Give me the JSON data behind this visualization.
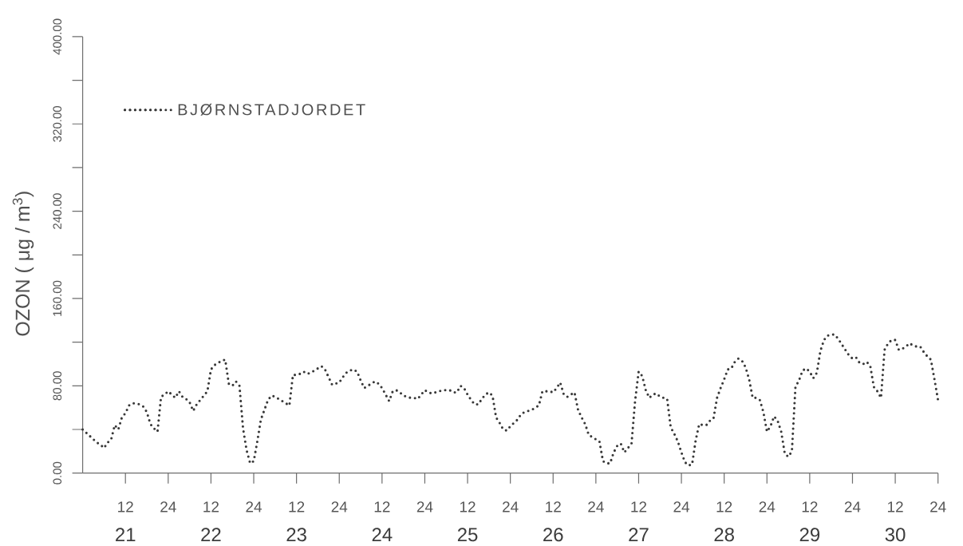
{
  "chart_data": {
    "type": "line",
    "ylabel": "OZON ( μg / m$^{3}$)",
    "legend": "top left",
    "line_style": "dotted",
    "categories": [
      null,
      null,
      null,
      null,
      null,
      null,
      null,
      null,
      null,
      null,
      null,
      null,
      "12",
      null,
      null,
      null,
      null,
      null,
      null,
      null,
      null,
      null,
      null,
      null,
      "24",
      null,
      null,
      null,
      null,
      null,
      null,
      null,
      null,
      null,
      null,
      null,
      "12",
      null,
      null,
      null,
      null,
      null,
      null,
      null,
      null,
      null,
      null,
      null,
      "24",
      null,
      null,
      null,
      null,
      null,
      null,
      null,
      null,
      null,
      null,
      null,
      "12",
      null,
      null,
      null,
      null,
      null,
      null,
      null,
      null,
      null,
      null,
      null,
      "24",
      null,
      null,
      null,
      null,
      null,
      null,
      null,
      null,
      null,
      null,
      null,
      "12",
      null,
      null,
      null,
      null,
      null,
      null,
      null,
      null,
      null,
      null,
      null,
      "24",
      null,
      null,
      null,
      null,
      null,
      null,
      null,
      null,
      null,
      null,
      null,
      "12",
      null,
      null,
      null,
      null,
      null,
      null,
      null,
      null,
      null,
      null,
      null,
      "24",
      null,
      null,
      null,
      null,
      null,
      null,
      null,
      null,
      null,
      null,
      null,
      "12",
      null,
      null,
      null,
      null,
      null,
      null,
      null,
      null,
      null,
      null,
      null,
      "24",
      null,
      null,
      null,
      null,
      null,
      null,
      null,
      null,
      null,
      null,
      null,
      "12",
      null,
      null,
      null,
      null,
      null,
      null,
      null,
      null,
      null,
      null,
      null,
      "24",
      null,
      null,
      null,
      null,
      null,
      null,
      null,
      null,
      null,
      null,
      null,
      "12",
      null,
      null,
      null,
      null,
      null,
      null,
      null,
      null,
      null,
      null,
      null,
      "24",
      null,
      null,
      null,
      null,
      null,
      null,
      null,
      null,
      null,
      null,
      null,
      "12",
      null,
      null,
      null,
      null,
      null,
      null,
      null,
      null,
      null,
      null,
      null,
      "24",
      null,
      null,
      null,
      null,
      null,
      null,
      null,
      null,
      null,
      null,
      null,
      "12",
      null,
      null,
      null,
      null,
      null,
      null,
      null,
      null,
      null,
      null,
      null,
      "24"
    ],
    "x2lim": [
      21,
      31
    ],
    "x2ticks": [
      {
        "value": 21.5,
        "label": "21"
      },
      {
        "value": 22.5,
        "label": "22"
      },
      {
        "value": 23.5,
        "label": "23"
      },
      {
        "value": 24.5,
        "label": "24"
      },
      {
        "value": 25.5,
        "label": "25"
      },
      {
        "value": 26.5,
        "label": "26"
      },
      {
        "value": 27.5,
        "label": "27"
      },
      {
        "value": 28.5,
        "label": "28"
      },
      {
        "value": 29.5,
        "label": "29"
      },
      {
        "value": 30.5,
        "label": "30"
      }
    ],
    "ylim": [
      0,
      400
    ],
    "yticks": [
      {
        "value": 0,
        "label": "0.00"
      },
      {
        "value": 40,
        "label": null
      },
      {
        "value": 80,
        "label": "80.00"
      },
      {
        "value": 120,
        "label": null
      },
      {
        "value": 160,
        "label": "160.00"
      },
      {
        "value": 200,
        "label": null
      },
      {
        "value": 240,
        "label": "240.00"
      },
      {
        "value": 280,
        "label": null
      },
      {
        "value": 320,
        "label": "320.00"
      },
      {
        "value": 360,
        "label": null
      },
      {
        "value": 400,
        "label": "400.00"
      }
    ],
    "series": [
      {
        "name": "BJØRNSTADJORDET",
        "color": "#383838",
        "values": [
          40,
          37,
          34,
          31,
          28,
          26,
          23,
          28,
          31,
          44,
          40,
          51,
          55,
          62,
          64,
          64,
          63,
          61,
          56,
          45,
          41,
          38,
          70,
          72,
          75,
          72,
          69,
          75,
          70,
          68,
          65,
          57,
          63,
          67,
          71,
          75,
          95,
          99,
          101,
          103,
          104,
          82,
          80,
          84,
          80,
          41,
          21,
          9,
          11,
          29,
          49,
          58,
          67,
          71,
          70,
          68,
          66,
          64,
          62,
          90,
          90,
          91,
          93,
          91,
          92,
          94,
          96,
          98,
          95,
          88,
          81,
          82,
          83,
          88,
          92,
          94,
          95,
          93,
          85,
          78,
          80,
          82,
          84,
          82,
          78,
          72,
          66,
          75,
          76,
          74,
          71,
          70,
          69,
          69,
          68,
          72,
          76,
          74,
          73,
          74,
          75,
          76,
          76,
          76,
          74,
          74,
          80,
          78,
          72,
          67,
          63,
          63,
          68,
          72,
          74,
          71,
          51,
          46,
          40,
          39,
          43,
          46,
          49,
          54,
          56,
          57,
          58,
          60,
          62,
          75,
          75,
          75,
          74,
          78,
          83,
          72,
          70,
          72,
          74,
          58,
          51,
          45,
          35,
          33,
          31,
          29,
          11,
          9,
          9,
          19,
          25,
          27,
          19,
          23,
          27,
          66,
          93,
          89,
          76,
          69,
          72,
          73,
          70,
          69,
          68,
          42,
          36,
          29,
          19,
          10,
          7,
          8,
          30,
          45,
          44,
          44,
          48,
          50,
          69,
          78,
          86,
          95,
          96,
          102,
          105,
          103,
          97,
          86,
          69,
          69,
          67,
          56,
          38,
          43,
          52,
          48,
          38,
          18,
          15,
          20,
          79,
          85,
          94,
          96,
          93,
          87,
          92,
          112,
          122,
          126,
          127,
          127,
          123,
          118,
          113,
          108,
          105,
          106,
          101,
          100,
          102,
          98,
          79,
          75,
          69,
          113,
          119,
          122,
          122,
          113,
          114,
          116,
          119,
          117,
          116,
          116,
          111,
          107,
          104,
          86,
          67
        ]
      }
    ]
  }
}
